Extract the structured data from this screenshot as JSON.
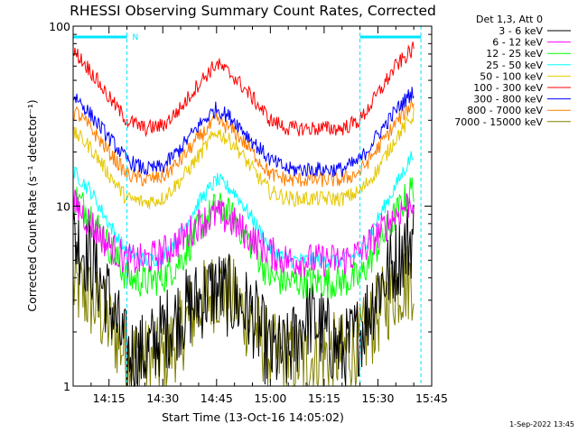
{
  "chart_data": {
    "type": "line",
    "title": "RHESSI Observing Summary Count Rates, Corrected",
    "xlabel": "Start Time (13-Oct-16 14:05:02)",
    "ylabel": "Corrected Count Rate (s⁻¹ detector⁻¹)",
    "y_scale": "log",
    "ylim": [
      1,
      100
    ],
    "xlim": [
      "14:05",
      "15:45"
    ],
    "xticks": [
      "14:15",
      "14:30",
      "14:45",
      "15:00",
      "15:15",
      "15:30",
      "15:45"
    ],
    "yticks": [
      "1",
      "10",
      "100"
    ],
    "legend_title": "Det 1,3, Att 0",
    "legend_position": "right",
    "x_time": [
      "14:06",
      "14:10",
      "14:15",
      "14:20",
      "14:25",
      "14:30",
      "14:35",
      "14:40",
      "14:45",
      "14:50",
      "14:55",
      "15:00",
      "15:05",
      "15:10",
      "15:15",
      "15:20",
      "15:25",
      "15:30",
      "15:35",
      "15:40"
    ],
    "series": [
      {
        "name": "3 - 6 keV",
        "color": "#000000",
        "values": [
          6.5,
          5.0,
          3.0,
          1.5,
          1.5,
          2.0,
          2.5,
          3.0,
          3.5,
          3.0,
          2.5,
          1.5,
          1.5,
          2.5,
          2.0,
          1.5,
          2.0,
          3.5,
          5.0,
          7.0
        ]
      },
      {
        "name": "6 - 12 keV",
        "color": "#ff00ff",
        "values": [
          10.0,
          8.0,
          6.0,
          5.0,
          5.0,
          5.5,
          6.5,
          8.0,
          9.0,
          8.0,
          6.5,
          5.5,
          5.0,
          5.0,
          5.0,
          5.0,
          5.5,
          7.0,
          9.0,
          11.0
        ]
      },
      {
        "name": "12 - 25 keV",
        "color": "#00ff00",
        "values": [
          11.0,
          9.0,
          6.0,
          4.0,
          3.8,
          4.0,
          5.0,
          7.5,
          10.0,
          8.5,
          6.0,
          4.0,
          3.8,
          3.8,
          3.8,
          3.8,
          4.0,
          6.0,
          9.0,
          13.0
        ]
      },
      {
        "name": "25 - 50 keV",
        "color": "#00ffff",
        "values": [
          15.0,
          12.0,
          8.0,
          5.5,
          5.0,
          5.2,
          7.0,
          10.5,
          14.0,
          12.0,
          8.5,
          5.8,
          5.0,
          5.0,
          5.0,
          5.0,
          5.5,
          8.5,
          13.0,
          20.0
        ]
      },
      {
        "name": "50 - 100 keV",
        "color": "#e6c800",
        "values": [
          25.0,
          21.0,
          15.0,
          11.0,
          10.5,
          11.0,
          14.0,
          19.0,
          26.0,
          22.0,
          16.0,
          12.0,
          11.0,
          11.0,
          11.0,
          11.0,
          12.0,
          16.0,
          24.0,
          32.0
        ]
      },
      {
        "name": "100 - 300 keV",
        "color": "#ff0000",
        "values": [
          70.0,
          56.0,
          40.0,
          30.0,
          27.0,
          28.0,
          35.0,
          48.0,
          62.0,
          52.0,
          40.0,
          30.0,
          27.0,
          27.0,
          27.0,
          27.0,
          30.0,
          42.0,
          60.0,
          75.0
        ]
      },
      {
        "name": "300 - 800 keV",
        "color": "#0000ff",
        "values": [
          40.0,
          32.0,
          24.0,
          18.0,
          16.0,
          16.5,
          21.0,
          28.0,
          35.0,
          30.0,
          23.0,
          18.0,
          16.0,
          16.0,
          16.0,
          16.0,
          18.0,
          25.0,
          34.0,
          44.0
        ]
      },
      {
        "name": "800 - 7000 keV",
        "color": "#ff8000",
        "values": [
          33.0,
          27.0,
          20.0,
          15.0,
          14.0,
          14.5,
          18.0,
          24.0,
          30.0,
          26.0,
          20.0,
          15.0,
          14.0,
          14.0,
          14.0,
          14.0,
          15.5,
          21.0,
          29.0,
          38.0
        ]
      },
      {
        "name": "7000 - 15000 keV",
        "color": "#808000",
        "values": [
          3.5,
          3.0,
          2.2,
          1.5,
          1.4,
          1.4,
          2.0,
          2.8,
          3.5,
          3.0,
          2.2,
          1.5,
          1.4,
          1.4,
          1.5,
          1.5,
          1.7,
          2.5,
          3.5,
          4.0
        ]
      }
    ],
    "annotations": [
      "N"
    ]
  },
  "timestamp": "1-Sep-2022 13:45"
}
